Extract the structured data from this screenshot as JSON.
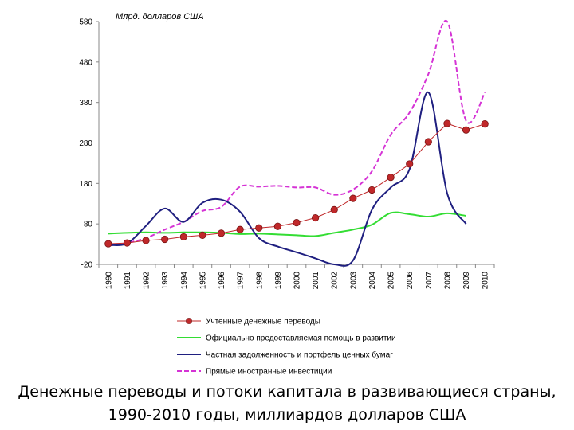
{
  "chart_data": {
    "type": "line",
    "unit_label": "Млрд. долларов США",
    "x": [
      "1990",
      "1991",
      "1992",
      "1993",
      "1994",
      "1995",
      "1996",
      "1997",
      "1998",
      "1999",
      "2000",
      "2001",
      "2002",
      "2003",
      "2004",
      "2005",
      "2006",
      "2007",
      "2008",
      "2009",
      "2010"
    ],
    "ylim": [
      -20,
      580
    ],
    "yticks": [
      -20,
      80,
      180,
      280,
      380,
      480,
      580
    ],
    "grid": false,
    "legend_position": "bottom",
    "series": [
      {
        "name": "Учтенные денежные переводы",
        "color": "#c0282a",
        "style": "line-markers",
        "values": [
          31,
          33,
          39,
          42,
          48,
          52,
          57,
          66,
          70,
          74,
          83,
          95,
          115,
          143,
          164,
          195,
          228,
          283,
          328,
          312,
          327
        ]
      },
      {
        "name": "Официально предоставляемая помощь в развитии",
        "color": "#33dd33",
        "style": "line",
        "values": [
          56,
          58,
          59,
          58,
          59,
          59,
          58,
          55,
          56,
          54,
          52,
          50,
          58,
          66,
          78,
          107,
          104,
          98,
          106,
          100,
          null
        ]
      },
      {
        "name": "Частная задолженность и портфель ценных бумаг",
        "color": "#1f1f80",
        "style": "smooth",
        "values": [
          28,
          32,
          75,
          118,
          85,
          132,
          140,
          110,
          45,
          24,
          10,
          -5,
          -20,
          -10,
          115,
          170,
          215,
          405,
          155,
          80,
          null
        ]
      },
      {
        "name": "Прямые иностранные инвестиции",
        "color": "#d533d5",
        "style": "dashed",
        "values": [
          26,
          33,
          45,
          66,
          85,
          112,
          122,
          172,
          172,
          174,
          170,
          170,
          152,
          165,
          210,
          300,
          355,
          450,
          580,
          335,
          405
        ]
      }
    ]
  },
  "caption": {
    "line1": "Денежные переводы и потоки капитала в развивающиеся страны,",
    "line2": "1990-2010 годы,  миллиардов долларов США"
  }
}
